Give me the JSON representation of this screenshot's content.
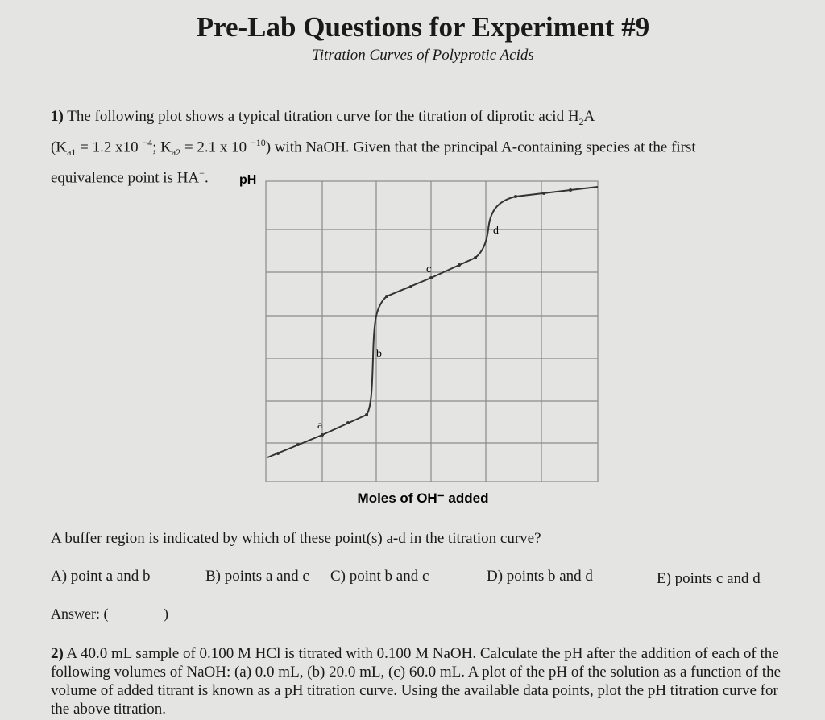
{
  "header": {
    "title": "Pre-Lab Questions for Experiment #9",
    "subtitle": "Titration Curves of Polyprotic Acids"
  },
  "question1": {
    "number": "1)",
    "segments": [
      "The following plot shows a typical titration curve for the titration of diprotic acid H",
      "2",
      "A",
      "(K",
      "a1",
      " = 1.2 x10 ",
      "−4",
      "; K",
      "a2",
      " = 2.1 x 10 ",
      "−10",
      ") with NaOH. Given that the principal A-containing species at the first",
      "equivalence point is HA",
      "−",
      "."
    ],
    "figure": {
      "y_axis_label": "pH",
      "x_axis_label": "Moles of OH⁻ added",
      "point_labels": [
        "a",
        "b",
        "c",
        "d"
      ]
    },
    "prompt": "A buffer region is indicated by which of these point(s) a-d in the titration curve?",
    "choices": [
      "A) point a and b",
      "B) points a and c",
      "C) point b and c",
      "D) points b and d",
      "E) points c and d"
    ],
    "answer_open": "Answer: (",
    "answer_close": ")"
  },
  "question2": {
    "number": "2)",
    "text": "A 40.0 mL sample of 0.100 M HCl is titrated with 0.100 M NaOH. Calculate the pH after the addition of each of the following volumes of NaOH: (a) 0.0 mL, (b) 20.0 mL, (c) 60.0 mL. A plot of the pH of the solution as a function of the volume of added titrant is known as a pH titration curve. Using the available data points, plot the pH titration curve for the above titration."
  }
}
